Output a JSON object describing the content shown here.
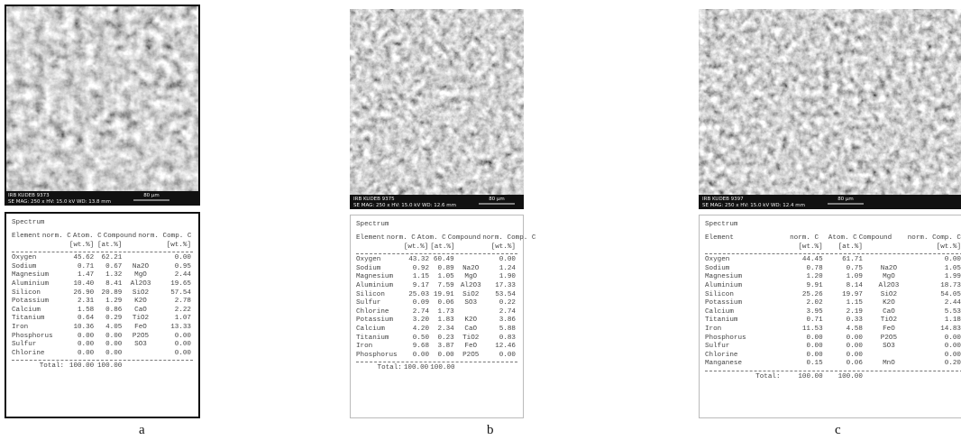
{
  "panels": [
    {
      "label": "a",
      "image": {
        "id_text": "IRB KUDEB 9373",
        "info_text": "SE  MAG: 250 x  HV: 15.0 kV  WD: 13.8 mm",
        "scale": "80 µm"
      },
      "table": {
        "title": "Spectrum",
        "headers": [
          "Element",
          "norm. C",
          "Atom. C",
          "Compound",
          "norm. Comp. C"
        ],
        "units": [
          "[wt.%]",
          "[at.%]",
          "[wt.%]"
        ],
        "rows": [
          [
            "Oxygen",
            "45.62",
            "62.21",
            null,
            "0.00"
          ],
          [
            "Sodium",
            "0.71",
            "0.67",
            "Na2O",
            "0.95"
          ],
          [
            "Magnesium",
            "1.47",
            "1.32",
            "MgO",
            "2.44"
          ],
          [
            "Aluminium",
            "10.40",
            "8.41",
            "Al2O3",
            "19.65"
          ],
          [
            "Silicon",
            "26.90",
            "20.89",
            "SiO2",
            "57.54"
          ],
          [
            "Potassium",
            "2.31",
            "1.29",
            "K2O",
            "2.78"
          ],
          [
            "Calcium",
            "1.58",
            "0.86",
            "CaO",
            "2.22"
          ],
          [
            "Titanium",
            "0.64",
            "0.29",
            "TiO2",
            "1.07"
          ],
          [
            "Iron",
            "10.36",
            "4.05",
            "FeO",
            "13.33"
          ],
          [
            "Phosphorus",
            "0.00",
            "0.00",
            "P2O5",
            "0.00"
          ],
          [
            "Sulfur",
            "0.00",
            "0.00",
            "SO3",
            "0.00"
          ],
          [
            "Chlorine",
            "0.00",
            "0.00",
            null,
            "0.00"
          ]
        ],
        "total": [
          "Total:",
          "100.00",
          "100.00"
        ]
      }
    },
    {
      "label": "b",
      "image": {
        "id_text": "IRB KUDEB 9375",
        "info_text": "SE  MAG: 250 x  HV: 15.0 kV  WD: 12.6 mm",
        "scale": "80 µm"
      },
      "table": {
        "title": "Spectrum",
        "headers": [
          "Element",
          "norm. C",
          "Atom. C",
          "Compound",
          "norm. Comp. C"
        ],
        "units": [
          "[wt.%]",
          "[at.%]",
          "[wt.%]"
        ],
        "rows": [
          [
            "Oxygen",
            "43.32",
            "60.49",
            null,
            "0.00"
          ],
          [
            "Sodium",
            "0.92",
            "0.89",
            "Na2O",
            "1.24"
          ],
          [
            "Magnesium",
            "1.15",
            "1.05",
            "MgO",
            "1.90"
          ],
          [
            "Aluminium",
            "9.17",
            "7.59",
            "Al2O3",
            "17.33"
          ],
          [
            "Silicon",
            "25.03",
            "19.91",
            "SiO2",
            "53.54"
          ],
          [
            "Sulfur",
            "0.09",
            "0.06",
            "SO3",
            "0.22"
          ],
          [
            "Chlorine",
            "2.74",
            "1.73",
            null,
            "2.74"
          ],
          [
            "Potassium",
            "3.20",
            "1.83",
            "K2O",
            "3.86"
          ],
          [
            "Calcium",
            "4.20",
            "2.34",
            "CaO",
            "5.88"
          ],
          [
            "Titanium",
            "0.50",
            "0.23",
            "TiO2",
            "0.83"
          ],
          [
            "Iron",
            "9.68",
            "3.87",
            "FeO",
            "12.46"
          ],
          [
            "Phosphorus",
            "0.00",
            "0.00",
            "P2O5",
            "0.00"
          ]
        ],
        "total": [
          "Total:",
          "100.00",
          "100.00"
        ]
      }
    },
    {
      "label": "c",
      "image": {
        "id_text": "IRB KUDEB 9397",
        "info_text": "SE  MAG: 250 x  HV: 15.0 kV  WD: 12.4 mm",
        "scale": "80 µm"
      },
      "table": {
        "title": "Spectrum",
        "headers": [
          "Element",
          "norm. C",
          "Atom. C",
          "Compound",
          "norm. Comp. C"
        ],
        "units": [
          "[wt.%]",
          "[at.%]",
          "[wt.%]"
        ],
        "rows": [
          [
            "Oxygen",
            "44.45",
            "61.71",
            null,
            "0.00"
          ],
          [
            "Sodium",
            "0.78",
            "0.75",
            "Na2O",
            "1.05"
          ],
          [
            "Magnesium",
            "1.20",
            "1.09",
            "MgO",
            "1.99"
          ],
          [
            "Aluminium",
            "9.91",
            "8.14",
            "Al2O3",
            "18.73"
          ],
          [
            "Silicon",
            "25.26",
            "19.97",
            "SiO2",
            "54.05"
          ],
          [
            "Potassium",
            "2.02",
            "1.15",
            "K2O",
            "2.44"
          ],
          [
            "Calcium",
            "3.95",
            "2.19",
            "CaO",
            "5.53"
          ],
          [
            "Titanium",
            "0.71",
            "0.33",
            "TiO2",
            "1.18"
          ],
          [
            "Iron",
            "11.53",
            "4.58",
            "FeO",
            "14.83"
          ],
          [
            "Phosphorus",
            "0.00",
            "0.00",
            "P2O5",
            "0.00"
          ],
          [
            "Sulfur",
            "0.00",
            "0.00",
            "SO3",
            "0.00"
          ],
          [
            "Chlorine",
            "0.00",
            "0.00",
            null,
            "0.00"
          ],
          [
            "Manganese",
            "0.15",
            "0.06",
            "MnO",
            "0.20"
          ]
        ],
        "total": [
          "Total:",
          "100.00",
          "100.00"
        ]
      }
    }
  ]
}
